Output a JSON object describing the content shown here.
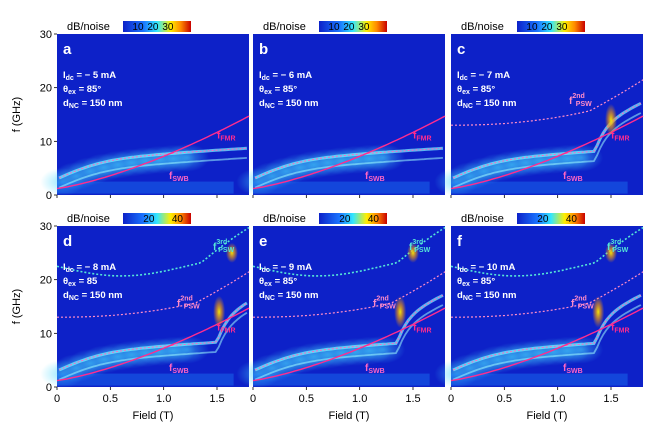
{
  "colorbar": {
    "label": "dB/noise",
    "ticks_top": [
      "10",
      "20",
      "30"
    ],
    "ticks_bottom": [
      "20",
      "40"
    ]
  },
  "axes": {
    "ylabel": "f (GHz)",
    "xlabel": "Field (T)",
    "yticks": [
      "0",
      "10",
      "20",
      "30"
    ],
    "xticks": [
      "0",
      "0.5",
      "1.0",
      "1.5"
    ]
  },
  "panels": [
    {
      "letter": "a",
      "idc": "= − 5 mA",
      "theta": "= 85°",
      "dnc": "= 150 nm",
      "psw2": false,
      "psw3": false
    },
    {
      "letter": "b",
      "idc": "= − 6 mA",
      "theta": "= 85°",
      "dnc": "= 150 nm",
      "psw2": false,
      "psw3": false
    },
    {
      "letter": "c",
      "idc": "= − 7 mA",
      "theta": "= 85°",
      "dnc": "= 150 nm",
      "psw2": true,
      "psw3": false
    },
    {
      "letter": "d",
      "idc": "= − 8 mA",
      "theta": "= 85",
      "dnc": "= 150 nm",
      "psw2": true,
      "psw3": true
    },
    {
      "letter": "e",
      "idc": "= − 9 mA",
      "theta": "= 85°",
      "dnc": "= 150 nm",
      "psw2": true,
      "psw3": true
    },
    {
      "letter": "f",
      "idc": "= − 10 mA",
      "theta": "= 85°",
      "dnc": "= 150 nm",
      "psw2": true,
      "psw3": true
    }
  ],
  "curve_labels": {
    "f": "f",
    "fmr_sub": "FMR",
    "swb_sub": "SWB",
    "psw_sub": "PSW",
    "sup2": "2nd",
    "sup3": "3rd"
  },
  "param_symbols": {
    "I": "I",
    "idc_sub": "dc",
    "theta": "θ",
    "theta_sub": "ex",
    "d": "d",
    "d_sub": "NC"
  },
  "colors": {
    "background": "#0d21c8",
    "fmr_curve": "#ff2c8f",
    "swb_curve": "#ff66c4",
    "psw2_curve": "#ff8cc8",
    "psw3_curve": "#55e6d8",
    "hot": "#ffee00"
  }
}
